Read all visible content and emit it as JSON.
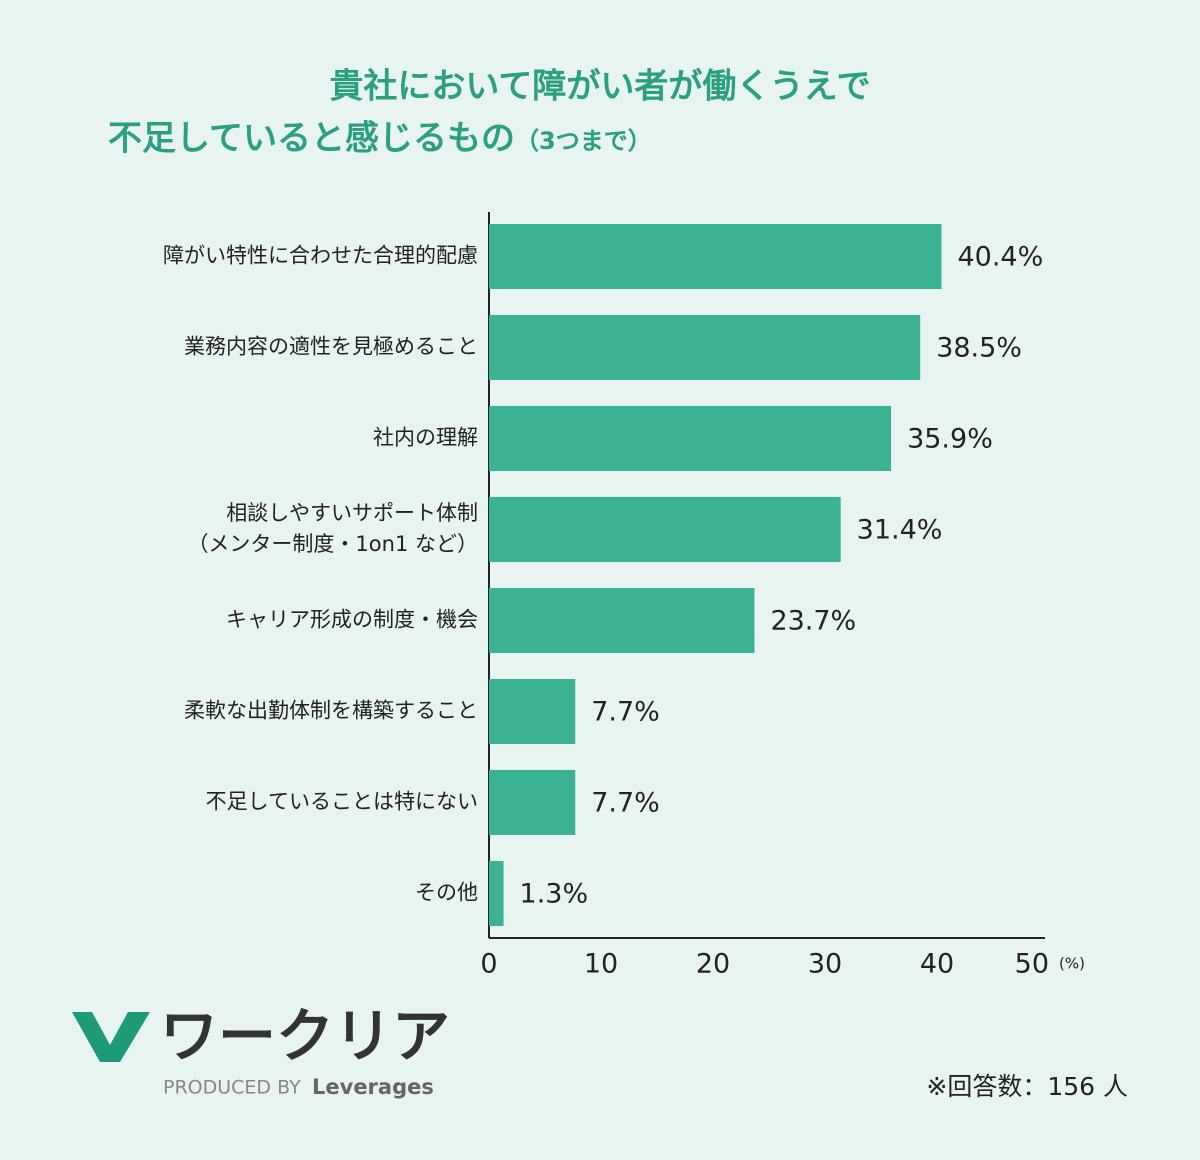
{
  "chart_data": {
    "type": "bar",
    "orientation": "horizontal",
    "title": [
      "貴社において障がい者が働くうえで",
      "不足していると感じるもの"
    ],
    "title_note": "（3つまで）",
    "categories": [
      "障がい特性に合わせた合理的配慮",
      "業務内容の適性を見極めること",
      "社内の理解",
      "相談しやすいサポート体制\n（メンター制度・1on1 など）",
      "キャリア形成の制度・機会",
      "柔軟な出勤体制を構築すること",
      "不足していることは特にない",
      "その他"
    ],
    "values": [
      40.4,
      38.5,
      35.9,
      31.4,
      23.7,
      7.7,
      7.7,
      1.3
    ],
    "value_labels": [
      "40.4%",
      "38.5%",
      "35.9%",
      "31.4%",
      "23.7%",
      "7.7%",
      "7.7%",
      "1.3%"
    ],
    "color": "#3bb293",
    "xlim": [
      0,
      50
    ],
    "xticks": [
      0,
      10,
      20,
      30,
      40,
      50
    ],
    "x_unit": "(%)",
    "note": "※回答数：156 人"
  },
  "logo": {
    "name": "ワークリア",
    "produced_by": "PRODUCED BY",
    "company": "Leverages"
  }
}
